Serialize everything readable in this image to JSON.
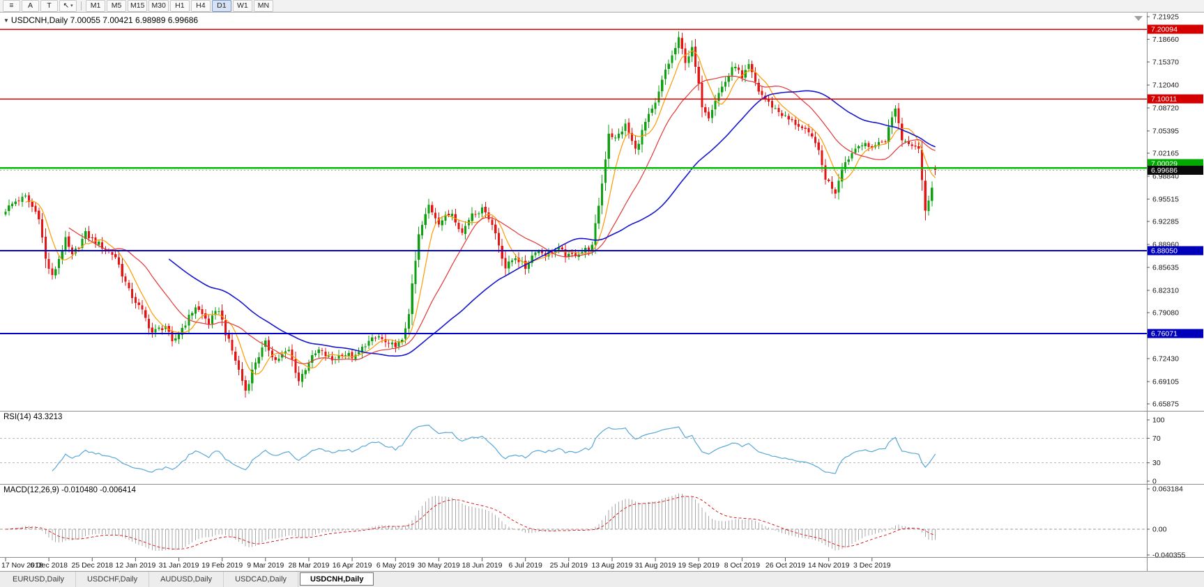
{
  "toolbar": {
    "items": [
      {
        "name": "charts-icon",
        "glyph": "≡"
      },
      {
        "name": "font-tool-button",
        "label": "A"
      },
      {
        "name": "text-tool-button",
        "label": "T"
      },
      {
        "name": "cursor-tool-button",
        "glyph": "↖",
        "caret": "▾"
      }
    ],
    "timeframes": [
      "M1",
      "M5",
      "M15",
      "M30",
      "H1",
      "H4",
      "D1",
      "W1",
      "MN"
    ],
    "active_timeframe": "D1"
  },
  "chart": {
    "title_marker": "▼",
    "title": "USDCNH,Daily 7.00055 7.00421 6.98989 6.99686",
    "rsi_label": "RSI(14) 43.3213",
    "macd_label": "MACD(12,26,9) -0.010480 -0.006414"
  },
  "tabs": [
    {
      "label": "EURUSD,Daily",
      "active": false
    },
    {
      "label": "USDCHF,Daily",
      "active": false
    },
    {
      "label": "AUDUSD,Daily",
      "active": false
    },
    {
      "label": "USDCAD,Daily",
      "active": false
    },
    {
      "label": "USDCNH,Daily",
      "active": true
    }
  ],
  "chart_data": {
    "type": "candlestick",
    "symbol": "USDCNH",
    "period": "Daily",
    "quote": {
      "open": 7.00055,
      "high": 7.00421,
      "low": 6.98989,
      "close": 6.99686
    },
    "price_axis_ticks": [
      "7.21925",
      "7.18660",
      "7.15370",
      "7.12040",
      "7.08720",
      "7.05395",
      "7.02165",
      "6.98840",
      "6.95515",
      "6.92285",
      "6.88960",
      "6.85635",
      "6.82310",
      "6.79080",
      "6.75755",
      "6.72430",
      "6.69105",
      "6.65875"
    ],
    "date_labels": [
      "17 Nov 2018",
      "6 Dec 2018",
      "25 Dec 2018",
      "12 Jan 2019",
      "31 Jan 2019",
      "19 Feb 2019",
      "9 Mar 2019",
      "28 Mar 2019",
      "16 Apr 2019",
      "6 May 2019",
      "30 May 2019",
      "18 Jun 2019",
      "6 Jul 2019",
      "25 Jul 2019",
      "13 Aug 2019",
      "31 Aug 2019",
      "19 Sep 2019",
      "8 Oct 2019",
      "26 Oct 2019",
      "14 Nov 2019",
      "3 Dec 2019"
    ],
    "horizontal_lines": [
      {
        "price": 7.20094,
        "label": "7.20094",
        "color": "#E60000",
        "label_bg": "#D40000",
        "width": 1.4,
        "label_dy": 0
      },
      {
        "price": 7.10011,
        "label": "7.10011",
        "color": "#E60000",
        "label_bg": "#D40000",
        "width": 1.4,
        "label_dy": 0
      },
      {
        "price": 7.00029,
        "label": "7.00029",
        "color": "#00BE00",
        "label_bg": "#00AA00",
        "width": 2.6,
        "label_dy": -6
      },
      {
        "price": 6.8805,
        "label": "6.88050",
        "color": "#0000CC",
        "label_bg": "#0000BB",
        "width": 1.8,
        "label_dy": 0
      },
      {
        "price": 6.76071,
        "label": "6.76071",
        "color": "#0000CC",
        "label_bg": "#0000BB",
        "width": 1.8,
        "label_dy": 0
      }
    ],
    "current_price": {
      "value": 6.99686,
      "label": "6.99686",
      "bg": "#0A0A0A",
      "line_color": "#AAAAAA"
    },
    "candles": {
      "count": 280,
      "up_color": "#0FA00F",
      "down_color": "#E51414",
      "anchors": [
        [
          0,
          6.94
        ],
        [
          3,
          6.952
        ],
        [
          6,
          6.958
        ],
        [
          10,
          6.93
        ],
        [
          12,
          6.868
        ],
        [
          14,
          6.842
        ],
        [
          18,
          6.896
        ],
        [
          20,
          6.872
        ],
        [
          24,
          6.905
        ],
        [
          28,
          6.89
        ],
        [
          33,
          6.872
        ],
        [
          37,
          6.822
        ],
        [
          41,
          6.792
        ],
        [
          44,
          6.762
        ],
        [
          48,
          6.772
        ],
        [
          50,
          6.746
        ],
        [
          54,
          6.776
        ],
        [
          57,
          6.8
        ],
        [
          61,
          6.776
        ],
        [
          64,
          6.796
        ],
        [
          66,
          6.762
        ],
        [
          69,
          6.722
        ],
        [
          72,
          6.678
        ],
        [
          75,
          6.72
        ],
        [
          78,
          6.746
        ],
        [
          81,
          6.722
        ],
        [
          85,
          6.736
        ],
        [
          88,
          6.692
        ],
        [
          91,
          6.72
        ],
        [
          94,
          6.736
        ],
        [
          98,
          6.722
        ],
        [
          101,
          6.732
        ],
        [
          105,
          6.726
        ],
        [
          108,
          6.746
        ],
        [
          112,
          6.756
        ],
        [
          115,
          6.742
        ],
        [
          119,
          6.748
        ],
        [
          121,
          6.792
        ],
        [
          124,
          6.902
        ],
        [
          127,
          6.946
        ],
        [
          130,
          6.922
        ],
        [
          134,
          6.936
        ],
        [
          137,
          6.906
        ],
        [
          140,
          6.936
        ],
        [
          144,
          6.94
        ],
        [
          147,
          6.906
        ],
        [
          150,
          6.856
        ],
        [
          153,
          6.872
        ],
        [
          156,
          6.856
        ],
        [
          159,
          6.882
        ],
        [
          162,
          6.876
        ],
        [
          166,
          6.882
        ],
        [
          169,
          6.872
        ],
        [
          173,
          6.88
        ],
        [
          176,
          6.886
        ],
        [
          179,
          6.978
        ],
        [
          181,
          7.052
        ],
        [
          183,
          7.042
        ],
        [
          186,
          7.062
        ],
        [
          189,
          7.026
        ],
        [
          192,
          7.066
        ],
        [
          195,
          7.092
        ],
        [
          198,
          7.142
        ],
        [
          200,
          7.162
        ],
        [
          202,
          7.186
        ],
        [
          204,
          7.156
        ],
        [
          206,
          7.172
        ],
        [
          209,
          7.092
        ],
        [
          211,
          7.076
        ],
        [
          213,
          7.1
        ],
        [
          216,
          7.126
        ],
        [
          219,
          7.15
        ],
        [
          221,
          7.128
        ],
        [
          223,
          7.148
        ],
        [
          226,
          7.112
        ],
        [
          229,
          7.094
        ],
        [
          232,
          7.082
        ],
        [
          235,
          7.07
        ],
        [
          238,
          7.062
        ],
        [
          241,
          7.048
        ],
        [
          243,
          7.04
        ],
        [
          246,
          6.986
        ],
        [
          249,
          6.966
        ],
        [
          251,
          7.002
        ],
        [
          254,
          7.022
        ],
        [
          256,
          7.036
        ],
        [
          259,
          7.03
        ],
        [
          262,
          7.036
        ],
        [
          264,
          7.042
        ],
        [
          267,
          7.088
        ],
        [
          269,
          7.042
        ],
        [
          272,
          7.036
        ],
        [
          274,
          7.03
        ],
        [
          276,
          6.936
        ],
        [
          278,
          6.976
        ],
        [
          279,
          6.99686
        ]
      ]
    },
    "moving_averages": [
      {
        "period": 7,
        "color": "#FF9900",
        "width": 1.2
      },
      {
        "period": 20,
        "color": "#E33535",
        "width": 1.2
      },
      {
        "period": 50,
        "color": "#1515CE",
        "width": 1.6
      }
    ],
    "rsi": {
      "period": 14,
      "current": 43.3213,
      "color": "#58A7D7",
      "width": 1.2,
      "levels": [
        "100",
        "70",
        "30",
        "0"
      ],
      "dashed_levels": [
        70,
        30
      ]
    },
    "macd": {
      "fast": 12,
      "slow": 26,
      "signal": 9,
      "main": -0.01048,
      "signal_value": -0.006414,
      "axis_ticks": [
        "0.063184",
        "0.00",
        "-0.040355"
      ],
      "histogram_color": "#A8A8A8",
      "signal_color": "#DD2222"
    }
  }
}
